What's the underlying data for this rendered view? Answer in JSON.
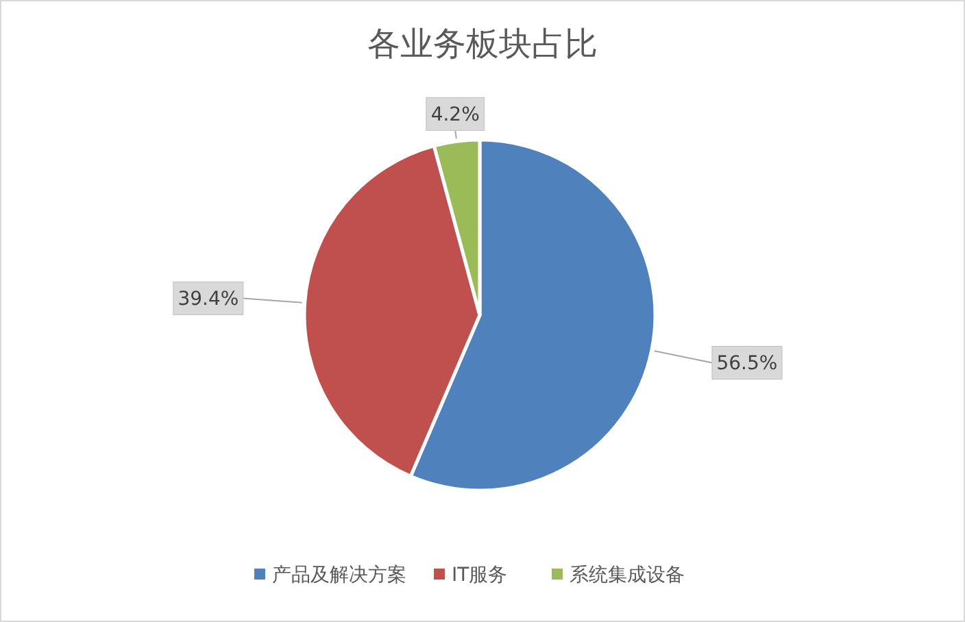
{
  "chart_data": {
    "type": "pie",
    "title": "各业务板块占比",
    "categories": [
      "产品及解决方案",
      "IT服务",
      "系统集成设备"
    ],
    "values": [
      56.5,
      39.4,
      4.2
    ],
    "value_labels": [
      "56.5%",
      "39.4%",
      "4.2%"
    ],
    "colors": [
      "#4f81bd",
      "#c0504d",
      "#9bbb59"
    ],
    "legend": "bottom"
  }
}
